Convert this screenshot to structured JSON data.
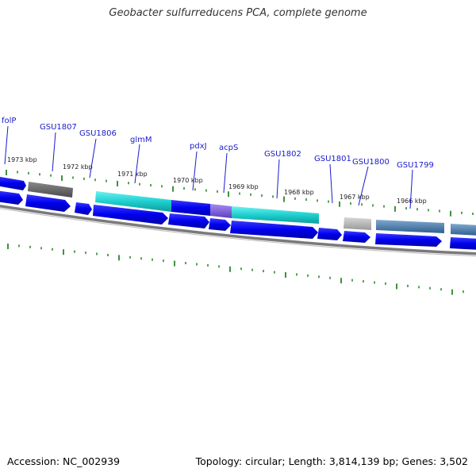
{
  "title": "Geobacter sulfurreducens PCA, complete genome",
  "footer": {
    "accession": "Accession: NC_002939",
    "summary": "Topology: circular; Length: 3,814,139 bp; Genes: 3,502"
  },
  "scale_labels": [
    {
      "name": "kbp-1973",
      "text": "1973 kbp"
    },
    {
      "name": "kbp-1972",
      "text": "1972 kbp"
    },
    {
      "name": "kbp-1971",
      "text": "1971 kbp"
    },
    {
      "name": "kbp-1970",
      "text": "1970 kbp"
    },
    {
      "name": "kbp-1969",
      "text": "1969 kbp"
    },
    {
      "name": "kbp-1968",
      "text": "1968 kbp"
    },
    {
      "name": "kbp-1967",
      "text": "1967 kbp"
    },
    {
      "name": "kbp-1966",
      "text": "1966 kbp"
    }
  ],
  "gene_labels": [
    {
      "name": "gene-label-folp",
      "text": "folP"
    },
    {
      "name": "gene-label-gsu1807",
      "text": "GSU1807"
    },
    {
      "name": "gene-label-gsu1806",
      "text": "GSU1806"
    },
    {
      "name": "gene-label-glmm",
      "text": "glmM"
    },
    {
      "name": "gene-label-pdxj",
      "text": "pdxJ"
    },
    {
      "name": "gene-label-acps",
      "text": "acpS"
    },
    {
      "name": "gene-label-gsu1802",
      "text": "GSU1802"
    },
    {
      "name": "gene-label-gsu1801",
      "text": "GSU1801"
    },
    {
      "name": "gene-label-gsu1800",
      "text": "GSU1800"
    },
    {
      "name": "gene-label-gsu1799",
      "text": "GSU1799"
    }
  ],
  "colors": {
    "cds": "#0000ee",
    "label": "#1a1acc",
    "tick": "#0a7a0a",
    "backbone": "#777777",
    "highlight_cyan": "#1ecfcf",
    "highlight_purple": "#7b59d6",
    "feature_gray": "#666666",
    "feature_lightgray": "#b9b9b9",
    "feature_steelblue": "#4a7fb0"
  }
}
